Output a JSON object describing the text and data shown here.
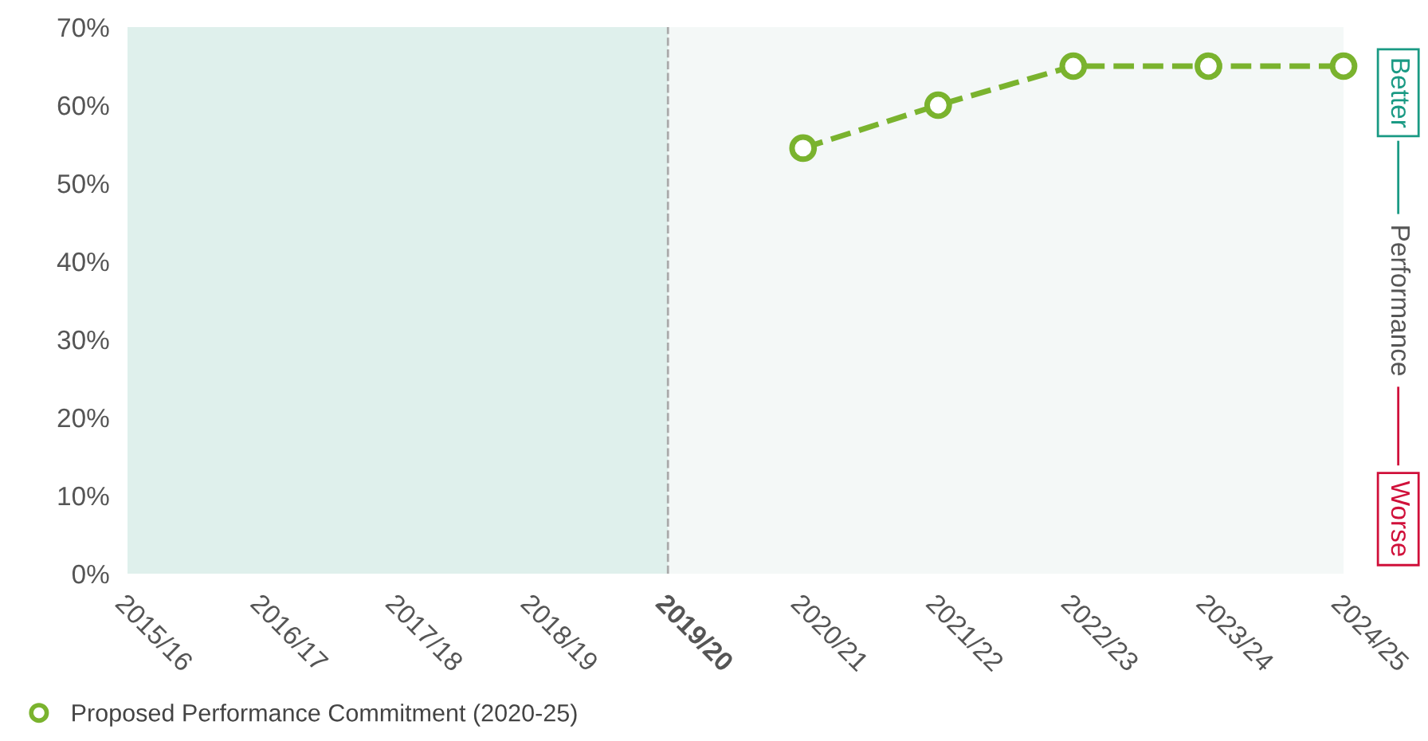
{
  "chart_data": {
    "type": "line",
    "categories": [
      "2015/16",
      "2016/17",
      "2017/18",
      "2018/19",
      "2019/20",
      "2020/21",
      "2021/22",
      "2022/23",
      "2023/24",
      "2024/25"
    ],
    "series": [
      {
        "name": "Proposed Performance Commitment (2020-25)",
        "color": "#7ab32e",
        "values": [
          null,
          null,
          null,
          null,
          null,
          54.5,
          60,
          65,
          65,
          65
        ]
      }
    ],
    "ylim": [
      0,
      70
    ],
    "yticks": [
      {
        "value": 0,
        "label": "0%"
      },
      {
        "value": 10,
        "label": "10%"
      },
      {
        "value": 20,
        "label": "20%"
      },
      {
        "value": 30,
        "label": "30%"
      },
      {
        "value": 40,
        "label": "40%"
      },
      {
        "value": 50,
        "label": "50%"
      },
      {
        "value": 60,
        "label": "60%"
      },
      {
        "value": 70,
        "label": "70%"
      }
    ],
    "bands": [
      {
        "axis": "x",
        "from": "2015/16",
        "to": "2019/20",
        "color": "#dff0ec"
      }
    ],
    "ref_lines": [
      {
        "axis": "x",
        "value": "2019/20",
        "color": "#aaaaaa",
        "line_style": "dashed"
      }
    ],
    "annotations": [
      "Better",
      "Performance",
      "Worse"
    ],
    "marker": "circle",
    "line_style": "dashed",
    "legend": "bottom left",
    "grid": false
  }
}
